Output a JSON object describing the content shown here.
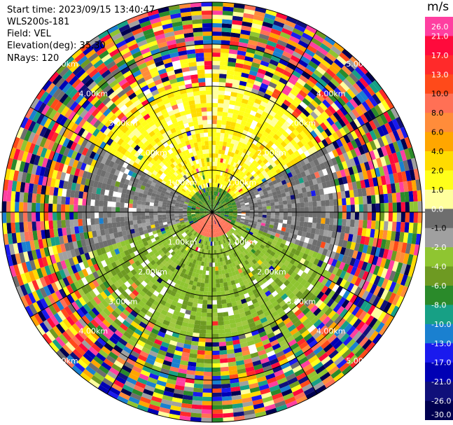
{
  "header": {
    "start_time": "Start time: 2023/09/15 13:40:47",
    "instrument": "WLS200s-181",
    "field": "Field: VEL",
    "elevation": "Elevation(deg): 35.30",
    "nrays": "NRays: 120"
  },
  "colorbar": {
    "unit": "m/s",
    "ticks": [
      "26.0",
      "21.0",
      "17.0",
      "13.0",
      "10.0",
      "8.0",
      "6.0",
      "4.0",
      "2.0",
      "1.0",
      "0.0",
      "-1.0",
      "-2.0",
      "-4.0",
      "-6.0",
      "-8.0",
      "-10.0",
      "-13.0",
      "-17.0",
      "-21.0",
      "-26.0",
      "-30.0"
    ],
    "colors": [
      "#ff3fa0",
      "#ff0a3c",
      "#ff2a2a",
      "#ff4a1a",
      "#ff7055",
      "#ff8c3a",
      "#ffa600",
      "#ffdb00",
      "#ffff1a",
      "#ffff9e",
      "#6e6e6e",
      "#a0a0a0",
      "#8fc531",
      "#6e9a22",
      "#2a8a2a",
      "#17a085",
      "#1a80d0",
      "#1a1aee",
      "#0000b4",
      "#10107a",
      "#000050"
    ]
  },
  "chart_data": {
    "type": "ppi",
    "field": "VEL",
    "units": "m/s",
    "nrays": 120,
    "elevation_deg": 35.3,
    "range_rings_km": [
      1.0,
      2.0,
      3.0,
      4.0,
      5.0
    ],
    "range_labels": [
      "1.00km",
      "2.00km",
      "3.00km",
      "4.00km",
      "5.00km"
    ],
    "spoke_spacing_deg": 30,
    "max_range_km": 5.0,
    "rings": [
      {
        "r0_km": 0.0,
        "r1_km": 0.6,
        "regime": "near"
      },
      {
        "r0_km": 0.6,
        "r1_km": 1.5,
        "regime": "inner"
      },
      {
        "r0_km": 1.5,
        "r1_km": 3.0,
        "regime": "middle"
      },
      {
        "r0_km": 3.0,
        "r1_km": 3.7,
        "regime": "noisy"
      },
      {
        "r0_km": 3.7,
        "r1_km": 5.0,
        "regime": "noise"
      }
    ]
  }
}
